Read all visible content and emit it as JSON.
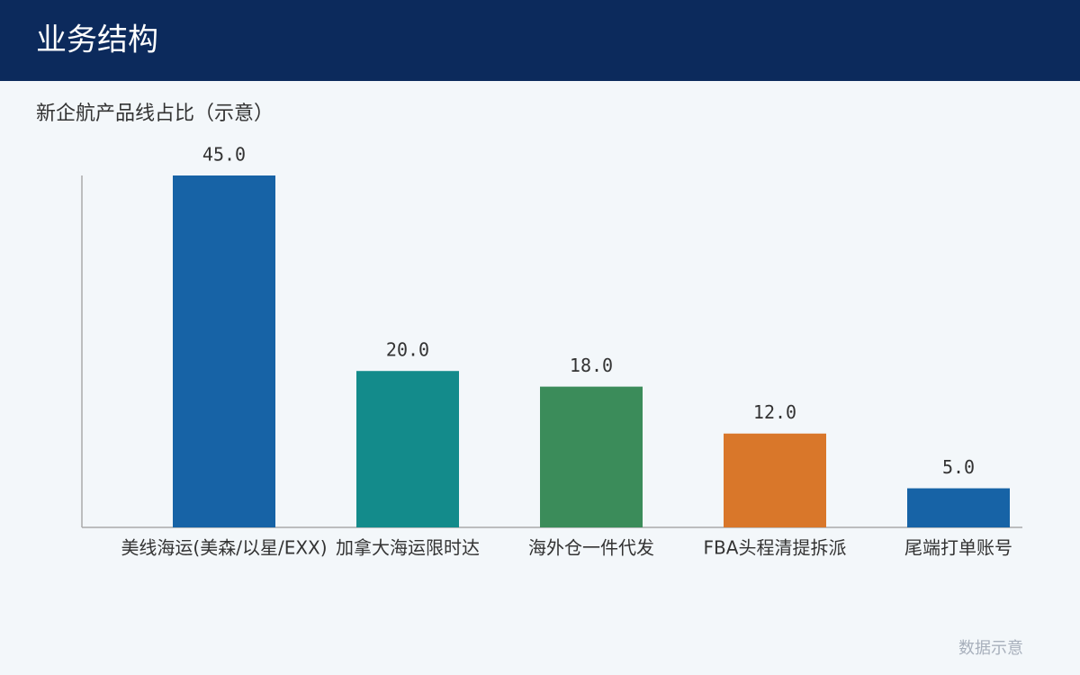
{
  "header": {
    "title": "业务结构"
  },
  "chart_data": {
    "type": "bar",
    "subtitle": "新企航产品线占比（示意）",
    "categories": [
      "美线海运(美森/以星/EXX)",
      "加拿大海运限时达",
      "海外仓一件代发",
      "FBA头程清提拆派",
      "尾端打单账号"
    ],
    "values": [
      45,
      20,
      18,
      12,
      5
    ],
    "value_labels": [
      "45.0",
      "20.0",
      "18.0",
      "12.0",
      "5.0"
    ],
    "colors": [
      "#1763a6",
      "#138b8b",
      "#3b8c5a",
      "#d9772a",
      "#1763a6"
    ]
  },
  "footer": {
    "note": "数据示意"
  }
}
